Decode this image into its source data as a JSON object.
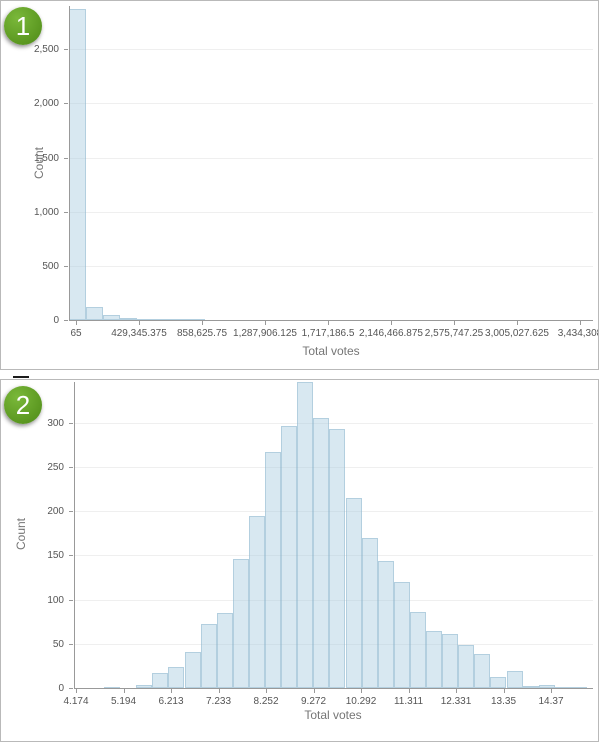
{
  "colors": {
    "bar_fill": "rgba(168,204,225,0.45)",
    "bar_border": "rgba(125,170,197,0.4)",
    "gridline": "#efefef",
    "axis_line": "#999999",
    "tick_label": "#555555",
    "axis_title": "#757575",
    "panel_border": "#b9b9b9",
    "badge_background": "#5d9a22",
    "badge_text": "#ffffff"
  },
  "panels": [
    {
      "badge": "1",
      "y_axis_title": "Count",
      "x_axis_title": "Total votes"
    },
    {
      "badge": "2",
      "y_axis_title": "Count",
      "x_axis_title": "Total votes"
    }
  ],
  "chart_data": [
    {
      "type": "bar",
      "title": "",
      "xlabel": "Total votes",
      "ylabel": "Count",
      "legend": false,
      "grid": true,
      "x_tick_labels": [
        "65",
        "429,345.375",
        "858,625.75",
        "1,287,906.125",
        "1,717,186.5",
        "2,146,466.875",
        "2,575,747.25",
        "3,005,027.625",
        "3,434,308"
      ],
      "y_tick_labels": [
        "0",
        "500",
        "1,000",
        "1,500",
        "2,000",
        "2,500"
      ],
      "y_tick_values": [
        0,
        500,
        1000,
        1500,
        2000,
        2500
      ],
      "ylim": [
        0,
        2880
      ],
      "bin_width_approx": 114475,
      "bin_starts_approx": [
        65,
        114540,
        229015,
        343491,
        457966,
        572442,
        686917,
        801393
      ],
      "bin_counts": [
        2875,
        120,
        43,
        21,
        6,
        3,
        6,
        2
      ]
    },
    {
      "type": "bar",
      "title": "",
      "xlabel": "Total votes",
      "ylabel": "Count",
      "legend": false,
      "grid": true,
      "x_tick_labels": [
        "4.174",
        "5.194",
        "6.213",
        "7.233",
        "8.252",
        "9.272",
        "10.292",
        "11.311",
        "12.331",
        "13.35",
        "14.37"
      ],
      "y_tick_labels": [
        "0",
        "50",
        "100",
        "150",
        "200",
        "250",
        "300"
      ],
      "y_tick_values": [
        0,
        50,
        100,
        150,
        200,
        250,
        300
      ],
      "ylim": [
        0,
        350
      ],
      "bin_width_approx": 0.346,
      "first_bin_start_approx": 4.78,
      "bin_counts": [
        1,
        0,
        4,
        17,
        24,
        41,
        73,
        85,
        146,
        195,
        267,
        297,
        346,
        305,
        293,
        215,
        170,
        144,
        120,
        86,
        65,
        61,
        49,
        38,
        12,
        19,
        2,
        3,
        1,
        1
      ]
    }
  ]
}
